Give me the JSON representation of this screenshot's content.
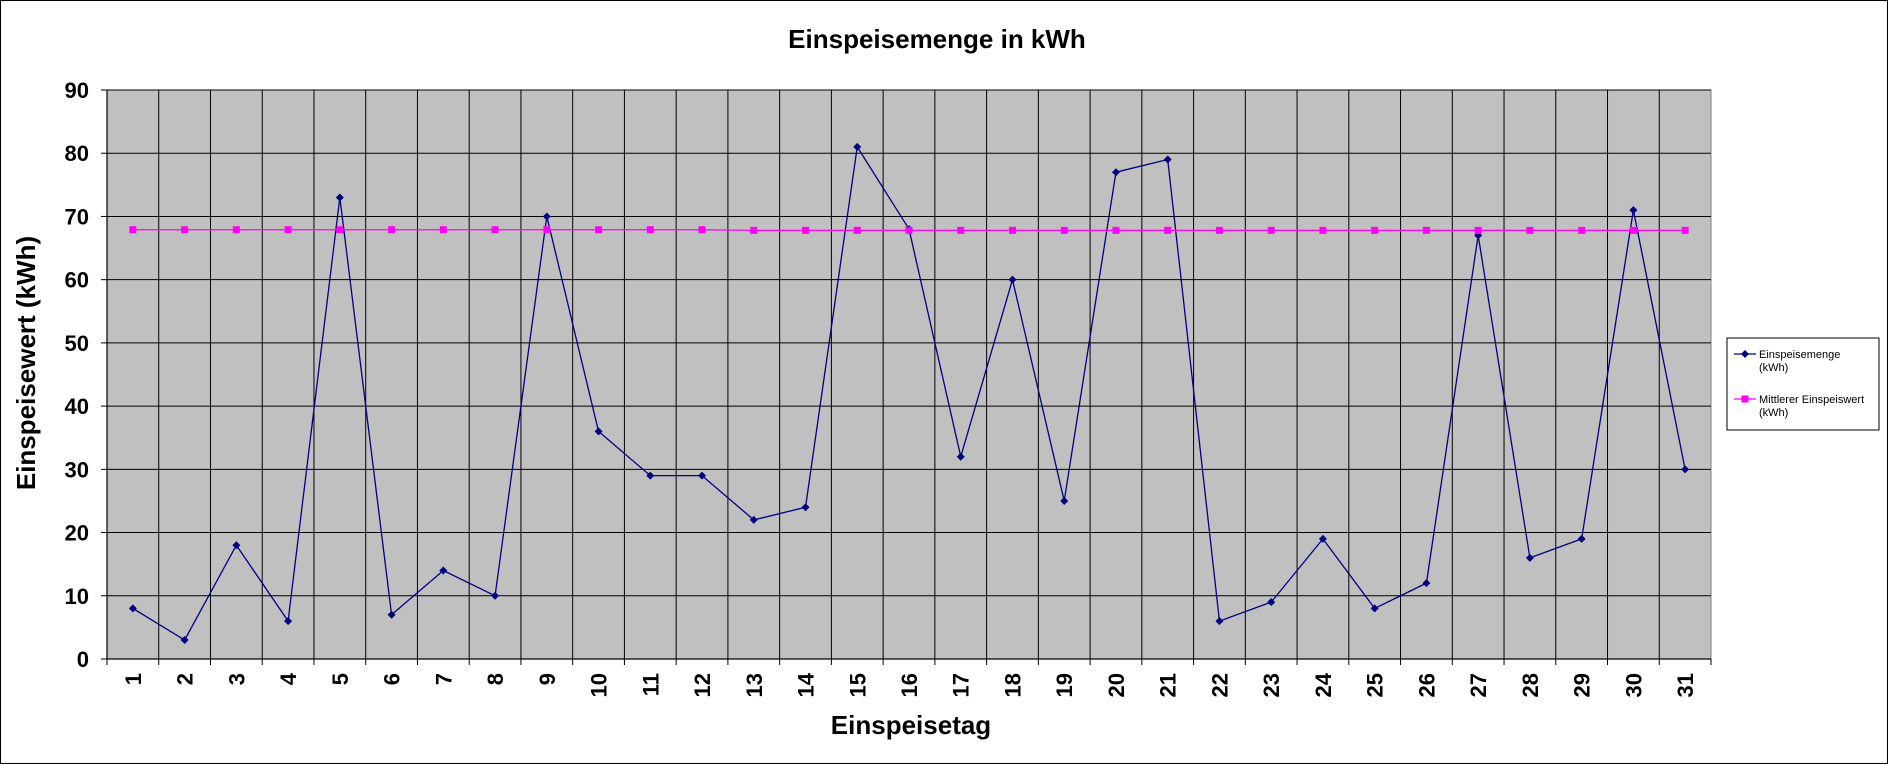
{
  "chart_data": {
    "type": "line",
    "title": "Einspeisemenge in kWh",
    "xlabel": "Einspeisetag",
    "ylabel": "Einspeisewert  (kWh)",
    "categories": [
      "1",
      "2",
      "3",
      "4",
      "5",
      "6",
      "7",
      "8",
      "9",
      "10",
      "11",
      "12",
      "13",
      "14",
      "15",
      "16",
      "17",
      "18",
      "19",
      "20",
      "21",
      "22",
      "23",
      "24",
      "25",
      "26",
      "27",
      "28",
      "29",
      "30",
      "31"
    ],
    "ylim": [
      0,
      90
    ],
    "yticks": [
      0,
      10,
      20,
      30,
      40,
      50,
      60,
      70,
      80,
      90
    ],
    "grid": true,
    "plot_background": "#c0c0c0",
    "legend_position": "right",
    "series": [
      {
        "name": "Einspeisemenge (kWh)",
        "legend_lines": [
          "Einspeisemenge",
          "(kWh)"
        ],
        "color": "#000080",
        "marker": "diamond",
        "values": [
          8,
          3,
          18,
          6,
          73,
          7,
          14,
          10,
          70,
          36,
          29,
          29,
          22,
          24,
          81,
          68,
          32,
          60,
          25,
          77,
          79,
          6,
          9,
          19,
          8,
          12,
          67,
          16,
          19,
          71,
          30
        ]
      },
      {
        "name": "Mittlerer Einspeiswert (kWh)",
        "legend_lines": [
          "Mittlerer Einspeiswert",
          "(kWh)"
        ],
        "color": "#ff00ff",
        "marker": "square",
        "values": [
          67.9,
          67.9,
          67.9,
          67.9,
          67.9,
          67.9,
          67.9,
          67.9,
          67.9,
          67.9,
          67.9,
          67.9,
          67.8,
          67.8,
          67.8,
          67.8,
          67.8,
          67.8,
          67.8,
          67.8,
          67.8,
          67.8,
          67.8,
          67.8,
          67.8,
          67.8,
          67.8,
          67.8,
          67.8,
          67.8,
          67.8
        ]
      }
    ]
  }
}
